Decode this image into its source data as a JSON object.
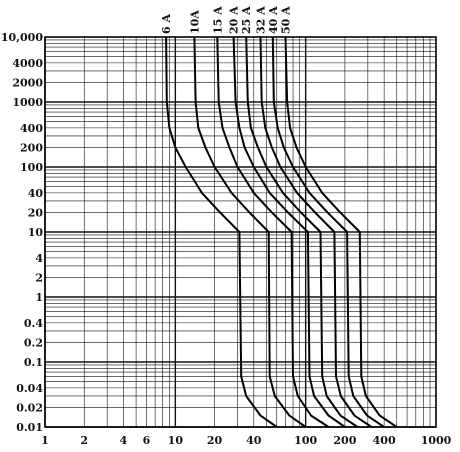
{
  "chart_data": {
    "type": "line",
    "title": "",
    "xlabel": "",
    "ylabel": "",
    "x_scale": "log",
    "y_scale": "log",
    "xlim": [
      1,
      1000
    ],
    "ylim": [
      0.01,
      10000
    ],
    "grid": true,
    "x_tick_labels": [
      "1",
      "2",
      "4",
      "6",
      "10",
      "20",
      "40",
      "100",
      "200",
      "400",
      "1000"
    ],
    "x_tick_values": [
      1,
      2,
      4,
      6,
      10,
      20,
      40,
      100,
      200,
      400,
      1000
    ],
    "y_tick_labels": [
      "10,000",
      "4000",
      "2000",
      "1000",
      "400",
      "200",
      "100",
      "40",
      "20",
      "10",
      "4",
      "2",
      "1",
      "0.4",
      "0.2",
      "0.1",
      "0.04",
      "0.02",
      "0.01"
    ],
    "y_tick_values": [
      10000,
      4000,
      2000,
      1000,
      400,
      200,
      100,
      40,
      20,
      10,
      4,
      2,
      1,
      0.4,
      0.2,
      0.1,
      0.04,
      0.02,
      0.01
    ],
    "series": [
      {
        "name": "6 A",
        "points": [
          [
            8.5,
            10000
          ],
          [
            8.6,
            1000
          ],
          [
            9,
            400
          ],
          [
            10,
            200
          ],
          [
            12,
            100
          ],
          [
            16,
            40
          ],
          [
            22,
            20
          ],
          [
            31,
            10
          ],
          [
            32,
            0.06
          ],
          [
            35,
            0.03
          ],
          [
            45,
            0.015
          ],
          [
            60,
            0.01
          ]
        ]
      },
      {
        "name": "10A",
        "points": [
          [
            14,
            10000
          ],
          [
            14.3,
            1000
          ],
          [
            15,
            400
          ],
          [
            17,
            200
          ],
          [
            20,
            100
          ],
          [
            27,
            40
          ],
          [
            37,
            20
          ],
          [
            52,
            10
          ],
          [
            53,
            0.06
          ],
          [
            58,
            0.03
          ],
          [
            75,
            0.015
          ],
          [
            100,
            0.01
          ]
        ]
      },
      {
        "name": "15 A",
        "points": [
          [
            21,
            10000
          ],
          [
            21.5,
            1000
          ],
          [
            23,
            400
          ],
          [
            26,
            200
          ],
          [
            30,
            100
          ],
          [
            40,
            40
          ],
          [
            55,
            20
          ],
          [
            78,
            10
          ],
          [
            80,
            0.06
          ],
          [
            87,
            0.03
          ],
          [
            110,
            0.015
          ],
          [
            150,
            0.01
          ]
        ]
      },
      {
        "name": "20 A",
        "points": [
          [
            28,
            10000
          ],
          [
            29,
            1000
          ],
          [
            31,
            400
          ],
          [
            34,
            200
          ],
          [
            40,
            100
          ],
          [
            53,
            40
          ],
          [
            73,
            20
          ],
          [
            104,
            10
          ],
          [
            107,
            0.06
          ],
          [
            116,
            0.03
          ],
          [
            150,
            0.015
          ],
          [
            200,
            0.01
          ]
        ]
      },
      {
        "name": "25 A",
        "points": [
          [
            35,
            10000
          ],
          [
            36,
            1000
          ],
          [
            38,
            400
          ],
          [
            43,
            200
          ],
          [
            50,
            100
          ],
          [
            67,
            40
          ],
          [
            92,
            20
          ],
          [
            130,
            10
          ],
          [
            134,
            0.06
          ],
          [
            145,
            0.03
          ],
          [
            185,
            0.015
          ],
          [
            250,
            0.01
          ]
        ]
      },
      {
        "name": "32 A",
        "points": [
          [
            45,
            10000
          ],
          [
            46,
            1000
          ],
          [
            49,
            400
          ],
          [
            55,
            200
          ],
          [
            64,
            100
          ],
          [
            86,
            40
          ],
          [
            118,
            20
          ],
          [
            166,
            10
          ],
          [
            171,
            0.06
          ],
          [
            186,
            0.03
          ],
          [
            237,
            0.015
          ],
          [
            320,
            0.01
          ]
        ]
      },
      {
        "name": "40 A",
        "points": [
          [
            56,
            10000
          ],
          [
            57,
            1000
          ],
          [
            61,
            400
          ],
          [
            68,
            200
          ],
          [
            80,
            100
          ],
          [
            107,
            40
          ],
          [
            147,
            20
          ],
          [
            208,
            10
          ],
          [
            214,
            0.06
          ],
          [
            232,
            0.03
          ],
          [
            296,
            0.015
          ],
          [
            400,
            0.01
          ]
        ]
      },
      {
        "name": "50 A",
        "points": [
          [
            70,
            10000
          ],
          [
            72,
            1000
          ],
          [
            76,
            400
          ],
          [
            85,
            200
          ],
          [
            100,
            100
          ],
          [
            134,
            40
          ],
          [
            184,
            20
          ],
          [
            260,
            10
          ],
          [
            267,
            0.06
          ],
          [
            290,
            0.03
          ],
          [
            370,
            0.015
          ],
          [
            500,
            0.01
          ]
        ]
      }
    ]
  }
}
